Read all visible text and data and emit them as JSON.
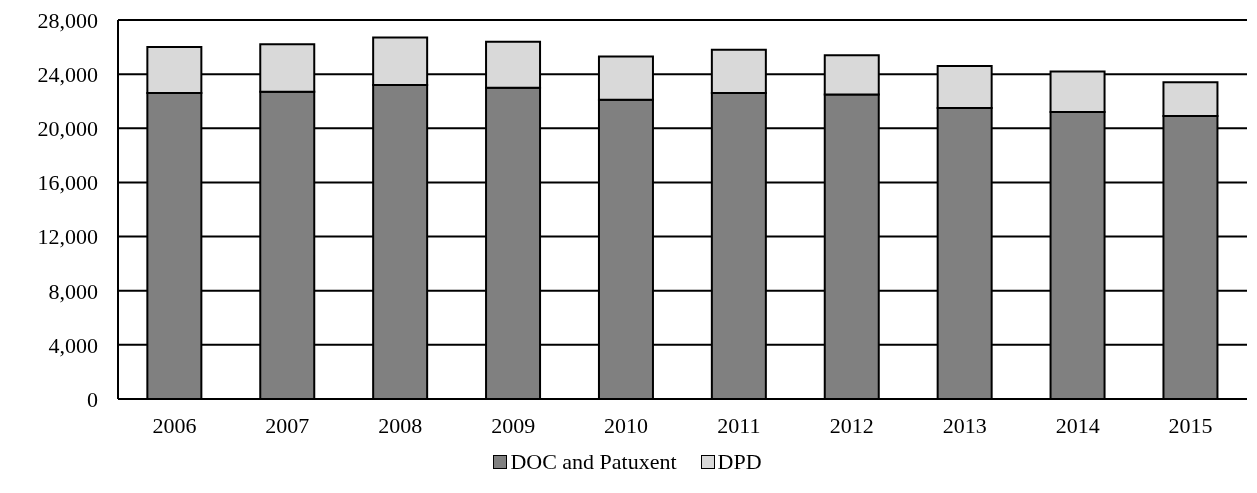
{
  "chart_data": {
    "type": "bar",
    "stacked": true,
    "categories": [
      "2006",
      "2007",
      "2008",
      "2009",
      "2010",
      "2011",
      "2012",
      "2013",
      "2014",
      "2015"
    ],
    "series": [
      {
        "name": "DOC and Patuxent",
        "color": "#808080",
        "values": [
          22600,
          22700,
          23200,
          23000,
          22100,
          22600,
          22500,
          21500,
          21200,
          20900
        ]
      },
      {
        "name": "DPD",
        "color": "#d9d9d9",
        "values": [
          3400,
          3500,
          3500,
          3400,
          3200,
          3200,
          2900,
          3100,
          3000,
          2500
        ]
      }
    ],
    "ylim": [
      0,
      28000
    ],
    "yticks": [
      {
        "value": 0,
        "label": "0"
      },
      {
        "value": 4000,
        "label": "4,000"
      },
      {
        "value": 8000,
        "label": "8,000"
      },
      {
        "value": 12000,
        "label": "12,000"
      },
      {
        "value": 16000,
        "label": "16,000"
      },
      {
        "value": 20000,
        "label": "20,000"
      },
      {
        "value": 24000,
        "label": "24,000"
      },
      {
        "value": 28000,
        "label": "28,000"
      }
    ],
    "grid": "y",
    "legend": "bottom"
  }
}
